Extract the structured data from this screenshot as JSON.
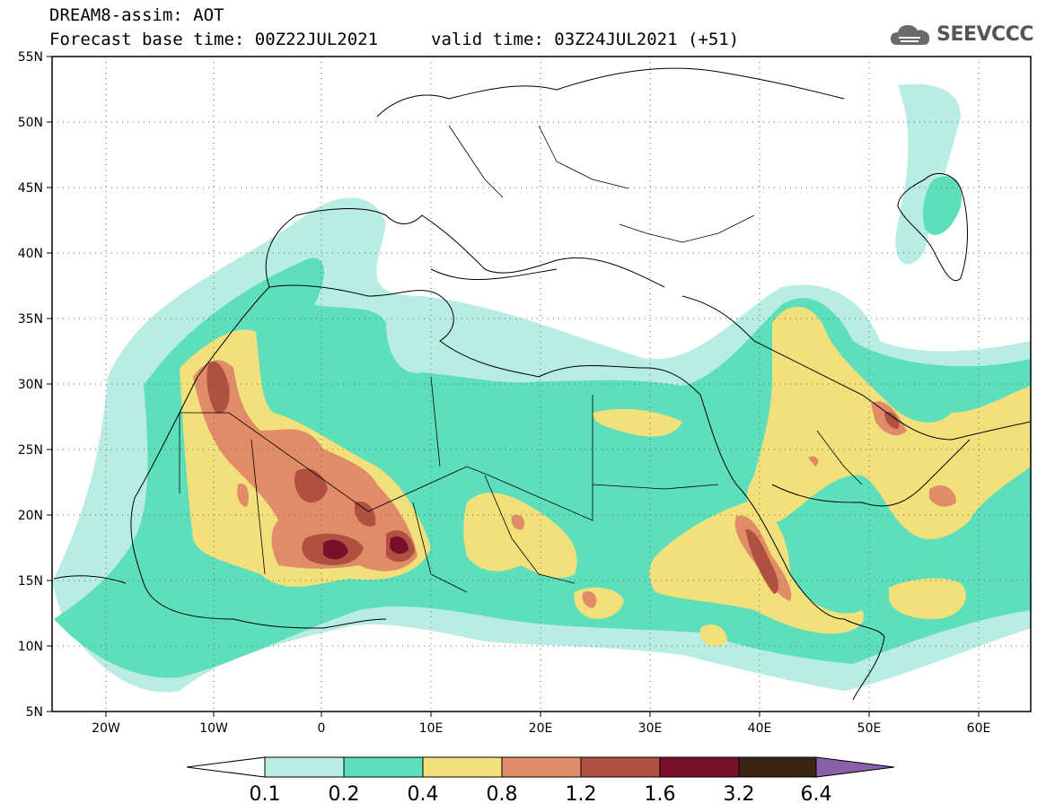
{
  "title": {
    "line1": "DREAM8-assim: AOT",
    "line2": "Forecast base time: 00Z22JUL2021",
    "line2b": "valid time: 03Z24JUL2021 (+51)"
  },
  "logo": {
    "icon": "cloud-icon",
    "text": "SEEVCCC"
  },
  "axes": {
    "lat_labels": [
      "55N",
      "50N",
      "45N",
      "40N",
      "35N",
      "30N",
      "25N",
      "20N",
      "15N",
      "10N",
      "5N"
    ],
    "lon_labels": [
      "20W",
      "10W",
      "0",
      "10E",
      "20E",
      "30E",
      "40E",
      "50E",
      "60E"
    ]
  },
  "colorbar": {
    "levels": [
      "0.1",
      "0.2",
      "0.4",
      "0.8",
      "1.2",
      "1.6",
      "3.2",
      "6.4"
    ],
    "colors": [
      "#ffffff",
      "#b8ede3",
      "#5ddfbc",
      "#f2e07a",
      "#e08c68",
      "#b05040",
      "#7a0f2a",
      "#3a2414",
      "#8a60a8"
    ]
  }
}
